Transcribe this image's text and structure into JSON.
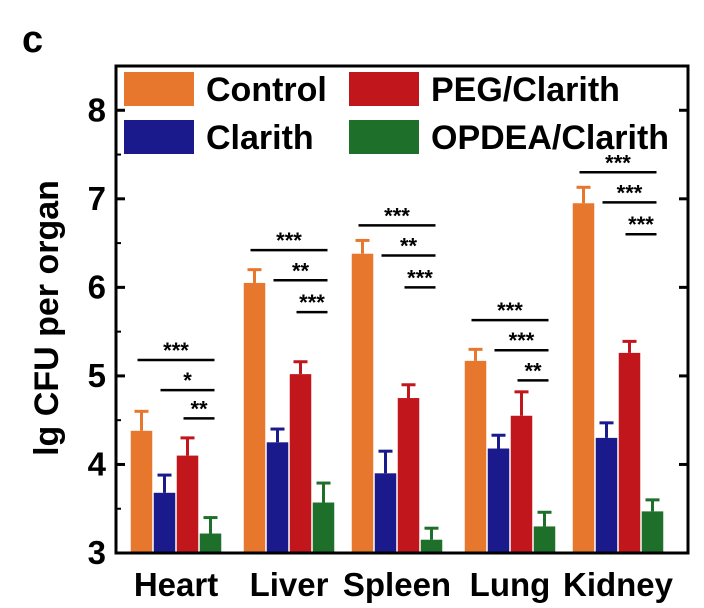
{
  "panel_label": "c",
  "chart_data": {
    "type": "bar",
    "title": "",
    "xlabel": "",
    "ylabel": "lg CFU per organ",
    "ylim": [
      3,
      8.5
    ],
    "yticks": [
      3,
      4,
      5,
      6,
      7,
      8
    ],
    "grid": false,
    "legend_position": "top",
    "categories": [
      "Heart",
      "Liver",
      "Spleen",
      "Lung",
      "Kidney"
    ],
    "series": [
      {
        "name": "Control",
        "color": "#E8772E",
        "values": [
          4.38,
          6.05,
          6.38,
          5.17,
          6.95
        ],
        "errors": [
          0.22,
          0.15,
          0.15,
          0.13,
          0.18
        ]
      },
      {
        "name": "Clarith",
        "color": "#1A1A8C",
        "values": [
          3.68,
          4.25,
          3.9,
          4.18,
          4.3
        ],
        "errors": [
          0.2,
          0.15,
          0.25,
          0.15,
          0.17
        ]
      },
      {
        "name": "PEG/Clarith",
        "color": "#C0161C",
        "values": [
          4.1,
          5.02,
          4.75,
          4.55,
          5.26
        ],
        "errors": [
          0.2,
          0.14,
          0.15,
          0.27,
          0.13
        ]
      },
      {
        "name": "OPDEA/Clarith",
        "color": "#1E6F2A",
        "values": [
          3.22,
          3.57,
          3.15,
          3.3,
          3.47
        ],
        "errors": [
          0.18,
          0.22,
          0.13,
          0.16,
          0.13
        ]
      }
    ],
    "significance": [
      {
        "category": "Heart",
        "marks": [
          {
            "from": "Control",
            "to": "OPDEA/Clarith",
            "label": "***",
            "y": 5.18
          },
          {
            "from": "Clarith",
            "to": "OPDEA/Clarith",
            "label": "*",
            "y": 4.84
          },
          {
            "from": "PEG/Clarith",
            "to": "OPDEA/Clarith",
            "label": "**",
            "y": 4.52
          }
        ]
      },
      {
        "category": "Liver",
        "marks": [
          {
            "from": "Control",
            "to": "OPDEA/Clarith",
            "label": "***",
            "y": 6.42
          },
          {
            "from": "Clarith",
            "to": "OPDEA/Clarith",
            "label": "**",
            "y": 6.08
          },
          {
            "from": "PEG/Clarith",
            "to": "OPDEA/Clarith",
            "label": "***",
            "y": 5.72
          }
        ]
      },
      {
        "category": "Spleen",
        "marks": [
          {
            "from": "Control",
            "to": "OPDEA/Clarith",
            "label": "***",
            "y": 6.7
          },
          {
            "from": "Clarith",
            "to": "OPDEA/Clarith",
            "label": "**",
            "y": 6.36
          },
          {
            "from": "PEG/Clarith",
            "to": "OPDEA/Clarith",
            "label": "***",
            "y": 6.0
          }
        ]
      },
      {
        "category": "Lung",
        "marks": [
          {
            "from": "Control",
            "to": "OPDEA/Clarith",
            "label": "***",
            "y": 5.63
          },
          {
            "from": "Clarith",
            "to": "OPDEA/Clarith",
            "label": "***",
            "y": 5.29
          },
          {
            "from": "PEG/Clarith",
            "to": "OPDEA/Clarith",
            "label": "**",
            "y": 4.95
          }
        ]
      },
      {
        "category": "Kidney",
        "marks": [
          {
            "from": "Control",
            "to": "OPDEA/Clarith",
            "label": "***",
            "y": 7.3
          },
          {
            "from": "Clarith",
            "to": "OPDEA/Clarith",
            "label": "***",
            "y": 6.96
          },
          {
            "from": "PEG/Clarith",
            "to": "OPDEA/Clarith",
            "label": "***",
            "y": 6.6
          }
        ]
      }
    ]
  }
}
